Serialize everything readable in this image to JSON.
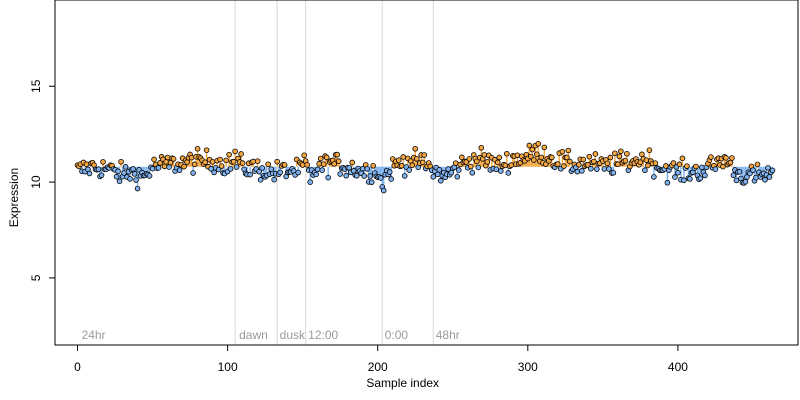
{
  "chart_data": {
    "type": "scatter",
    "xlabel": "Sample index",
    "ylabel": "Expression",
    "xlim": [
      -15,
      480
    ],
    "ylim": [
      1.5,
      19.5
    ],
    "x_ticks": [
      0,
      100,
      200,
      300,
      400
    ],
    "y_ticks": [
      5,
      10,
      15
    ],
    "baseline": 10.8,
    "grid": false,
    "colors": {
      "above_baseline": "#f5a742",
      "below_baseline": "#7fb2f0",
      "point_edge": "#000000",
      "divider": "#d9d9d9",
      "section_label": "#9a9a9a"
    },
    "section_dividers": [
      105,
      133,
      152,
      203,
      237
    ],
    "section_labels": [
      {
        "text": "24hr",
        "x": 2
      },
      {
        "text": "dawn",
        "x": 107
      },
      {
        "text": "dusk",
        "x": 134
      },
      {
        "text": "12:00",
        "x": 153
      },
      {
        "text": "0:00",
        "x": 204
      },
      {
        "text": "48hr",
        "x": 238
      }
    ],
    "anchor_points": [
      [
        0,
        10.6
      ],
      [
        10,
        10.8
      ],
      [
        20,
        10.7
      ],
      [
        25,
        10.5
      ],
      [
        30,
        10.4
      ],
      [
        35,
        10.5
      ],
      [
        40,
        10.4
      ],
      [
        45,
        10.3
      ],
      [
        50,
        10.8
      ],
      [
        60,
        10.9
      ],
      [
        70,
        11.0
      ],
      [
        80,
        11.1
      ],
      [
        90,
        11.1
      ],
      [
        100,
        10.9
      ],
      [
        105,
        11.1
      ],
      [
        110,
        10.8
      ],
      [
        120,
        10.7
      ],
      [
        130,
        10.5
      ],
      [
        140,
        10.6
      ],
      [
        148,
        10.6
      ],
      [
        152,
        11.0
      ],
      [
        155,
        10.2
      ],
      [
        160,
        10.8
      ],
      [
        170,
        11.0
      ],
      [
        180,
        10.8
      ],
      [
        190,
        10.6
      ],
      [
        200,
        10.6
      ],
      [
        203,
        9.8
      ],
      [
        206,
        10.4
      ],
      [
        212,
        10.9
      ],
      [
        220,
        11.1
      ],
      [
        230,
        11.0
      ],
      [
        237,
        10.6
      ],
      [
        245,
        10.3
      ],
      [
        252,
        10.7
      ],
      [
        260,
        11.1
      ],
      [
        270,
        11.2
      ],
      [
        280,
        10.8
      ],
      [
        290,
        11.2
      ],
      [
        300,
        11.3
      ],
      [
        305,
        11.6
      ],
      [
        310,
        11.5
      ],
      [
        320,
        11.1
      ],
      [
        330,
        10.9
      ],
      [
        340,
        11.0
      ],
      [
        350,
        10.8
      ],
      [
        360,
        11.0
      ],
      [
        370,
        11.1
      ],
      [
        380,
        11.2
      ],
      [
        387,
        10.8
      ],
      [
        395,
        10.6
      ],
      [
        405,
        10.5
      ],
      [
        415,
        10.6
      ],
      [
        425,
        10.9
      ],
      [
        430,
        11.2
      ],
      [
        435,
        11.0
      ],
      [
        440,
        10.4
      ],
      [
        450,
        10.3
      ],
      [
        463,
        10.4
      ]
    ],
    "n_points": 464,
    "noise_amplitude": 0.28
  }
}
